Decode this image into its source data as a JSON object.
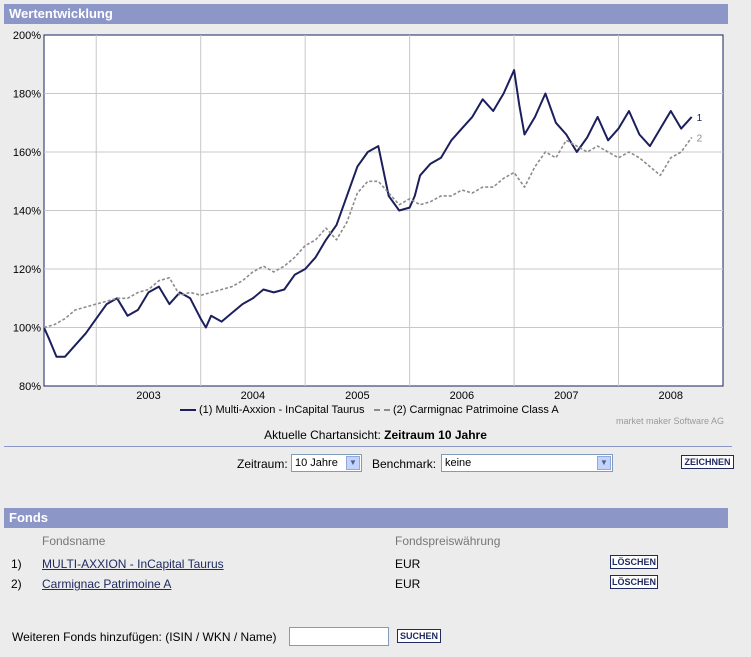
{
  "header": {
    "title": "Wertentwicklung"
  },
  "chart_data": {
    "type": "line",
    "xlabel": "",
    "ylabel": "",
    "x_ticks": [
      "2003",
      "2004",
      "2005",
      "2006",
      "2007",
      "2008"
    ],
    "y_ticks": [
      "80%",
      "100%",
      "120%",
      "140%",
      "160%",
      "180%",
      "200%"
    ],
    "ylim": [
      80,
      200
    ],
    "xlim": [
      2002.5,
      2009.0
    ],
    "grid": true,
    "legend_position": "bottom",
    "series": [
      {
        "name": "Multi-Axxion - InCapital Taurus",
        "color": "#1b1f5c",
        "style": "solid",
        "end_label": "1",
        "x": [
          2002.5,
          2002.55,
          2002.62,
          2002.7,
          2002.8,
          2002.9,
          2003.0,
          2003.1,
          2003.2,
          2003.3,
          2003.4,
          2003.5,
          2003.6,
          2003.7,
          2003.8,
          2003.9,
          2004.0,
          2004.05,
          2004.1,
          2004.2,
          2004.3,
          2004.4,
          2004.5,
          2004.6,
          2004.7,
          2004.8,
          2004.9,
          2005.0,
          2005.1,
          2005.2,
          2005.3,
          2005.4,
          2005.5,
          2005.6,
          2005.7,
          2005.8,
          2005.9,
          2006.0,
          2006.05,
          2006.1,
          2006.2,
          2006.3,
          2006.4,
          2006.5,
          2006.6,
          2006.7,
          2006.8,
          2006.9,
          2007.0,
          2007.05,
          2007.1,
          2007.2,
          2007.3,
          2007.4,
          2007.5,
          2007.6,
          2007.7,
          2007.8,
          2007.9,
          2008.0,
          2008.1,
          2008.2,
          2008.3,
          2008.4,
          2008.5,
          2008.6,
          2008.7
        ],
        "values": [
          100,
          96,
          90,
          90,
          94,
          98,
          103,
          108,
          110,
          104,
          106,
          112,
          114,
          108,
          112,
          110,
          103,
          100,
          104,
          102,
          105,
          108,
          110,
          113,
          112,
          113,
          118,
          120,
          124,
          130,
          135,
          145,
          155,
          160,
          162,
          145,
          140,
          141,
          145,
          152,
          156,
          158,
          164,
          168,
          172,
          178,
          174,
          180,
          188,
          176,
          166,
          172,
          180,
          170,
          166,
          160,
          165,
          172,
          164,
          168,
          174,
          166,
          162,
          168,
          174,
          168,
          172
        ]
      },
      {
        "name": "Carmignac Patrimoine Class A",
        "color": "#8c8c8c",
        "style": "dashed",
        "end_label": "2",
        "x": [
          2002.5,
          2002.6,
          2002.7,
          2002.8,
          2002.9,
          2003.0,
          2003.1,
          2003.2,
          2003.3,
          2003.4,
          2003.5,
          2003.6,
          2003.7,
          2003.8,
          2003.9,
          2004.0,
          2004.1,
          2004.2,
          2004.3,
          2004.4,
          2004.5,
          2004.6,
          2004.7,
          2004.8,
          2004.9,
          2005.0,
          2005.1,
          2005.2,
          2005.3,
          2005.4,
          2005.5,
          2005.6,
          2005.7,
          2005.8,
          2005.9,
          2006.0,
          2006.1,
          2006.2,
          2006.3,
          2006.4,
          2006.5,
          2006.6,
          2006.7,
          2006.8,
          2006.9,
          2007.0,
          2007.1,
          2007.2,
          2007.3,
          2007.4,
          2007.5,
          2007.6,
          2007.7,
          2007.8,
          2007.9,
          2008.0,
          2008.1,
          2008.2,
          2008.3,
          2008.4,
          2008.5,
          2008.6,
          2008.7
        ],
        "values": [
          100,
          101,
          103,
          106,
          107,
          108,
          109,
          110,
          110,
          112,
          113,
          116,
          117,
          111,
          112,
          111,
          112,
          113,
          114,
          116,
          119,
          121,
          119,
          121,
          124,
          128,
          130,
          134,
          130,
          136,
          146,
          150,
          150,
          146,
          142,
          144,
          142,
          143,
          145,
          145,
          147,
          146,
          148,
          148,
          151,
          153,
          148,
          155,
          160,
          158,
          164,
          162,
          160,
          162,
          160,
          158,
          160,
          158,
          155,
          152,
          158,
          160,
          165
        ]
      }
    ]
  },
  "legend": {
    "s1_label": "(1)  Multi-Axxion - InCapital Taurus",
    "s2_label": "(2)  Carmignac Patrimoine Class A"
  },
  "credit": "market maker Software AG",
  "current_view": {
    "label": "Aktuelle Chartansicht:",
    "value": "Zeitraum 10 Jahre"
  },
  "controls": {
    "zeitraum_label": "Zeitraum:",
    "zeitraum_value": "10 Jahre",
    "benchmark_label": "Benchmark:",
    "benchmark_value": "keine",
    "zeichnen_button": "ZEICHNEN"
  },
  "fonds": {
    "title": "Fonds",
    "col_name": "Fondsname",
    "col_currency": "Fondspreiswährung",
    "rows": [
      {
        "num": "1)",
        "name": "MULTI-AXXION - InCapital Taurus",
        "currency": "EUR",
        "action": "LÖSCHEN"
      },
      {
        "num": "2)",
        "name": "Carmignac Patrimoine A",
        "currency": "EUR",
        "action": "LÖSCHEN"
      }
    ],
    "add_label": "Weiteren Fonds hinzufügen: (ISIN / WKN / Name)",
    "add_input_value": "",
    "search_button": "SUCHEN"
  }
}
